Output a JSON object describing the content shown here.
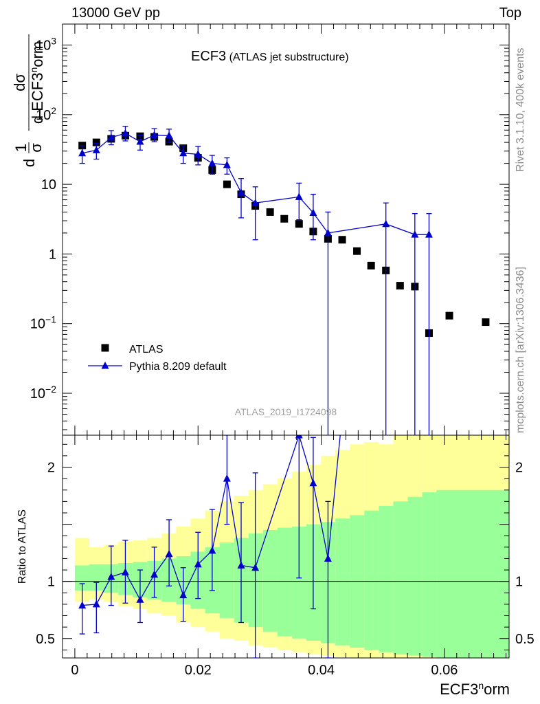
{
  "header": {
    "left": "13000 GeV pp",
    "right": "Top"
  },
  "side_texts": {
    "rivet": "Rivet 3.1.10,  400k events",
    "mcplots": "mcplots.cern.ch [arXiv:1306.3436]"
  },
  "colors": {
    "data": "#000000",
    "mc": "#0000cc",
    "band_inner": "#99ff99",
    "band_outer": "#ffff99"
  },
  "chart_data": [
    {
      "type": "scatter",
      "title": "ECF3",
      "subtitle": "(ATLAS jet substructure)",
      "analysis_label": "ATLAS_2019_I1724098",
      "ylabel": "1/σ dσ/d ECF3^norm",
      "y_scale": "log",
      "ylim": [
        0.0025,
        2000
      ],
      "xlim": [
        -0.002,
        0.0705
      ],
      "yticks": [
        {
          "value": 1000,
          "base": "10",
          "exp": "3"
        },
        {
          "value": 100,
          "base": "10",
          "exp": "2"
        },
        {
          "value": 10,
          "base": "10",
          "exp": ""
        },
        {
          "value": 1,
          "base": "1",
          "exp": ""
        },
        {
          "value": 0.1,
          "base": "10",
          "exp": "−1"
        },
        {
          "value": 0.01,
          "base": "10",
          "exp": "−2"
        }
      ],
      "legend": {
        "position": "bottom-left",
        "entries": [
          "ATLAS",
          "Pythia 8.209 default"
        ]
      },
      "series": [
        {
          "name": "ATLAS",
          "marker": "square",
          "x": [
            0.0012,
            0.0035,
            0.0059,
            0.0082,
            0.0106,
            0.0129,
            0.0153,
            0.0176,
            0.02,
            0.0223,
            0.0247,
            0.027,
            0.0293,
            0.0317,
            0.034,
            0.0364,
            0.0387,
            0.0411,
            0.0434,
            0.0458,
            0.0481,
            0.0505,
            0.0528,
            0.0552,
            0.0575,
            0.0608,
            0.0667
          ],
          "y": [
            36,
            40,
            45,
            50,
            49,
            48,
            41,
            33,
            24,
            16,
            10,
            7.2,
            4.9,
            4.0,
            3.2,
            2.7,
            2.1,
            1.65,
            1.6,
            1.1,
            0.68,
            0.58,
            0.35,
            0.34,
            0.073,
            0.13,
            0.105
          ]
        },
        {
          "name": "Pythia 8.209 default",
          "marker": "triangle",
          "x": [
            0.0012,
            0.0035,
            0.0059,
            0.0082,
            0.0106,
            0.0129,
            0.0153,
            0.0176,
            0.02,
            0.0223,
            0.0247,
            0.027,
            0.0293,
            0.0364,
            0.0387,
            0.0411,
            0.0505,
            0.0552,
            0.0575
          ],
          "y": [
            28,
            31,
            47,
            54,
            41,
            51,
            50,
            28,
            27,
            20,
            19,
            7.6,
            5.4,
            6.6,
            3.9,
            2.0,
            2.7,
            1.9,
            1.9
          ],
          "err_lo": [
            8,
            8,
            10,
            12,
            10,
            10,
            10,
            8,
            8,
            6,
            5,
            4.3,
            3.8,
            3.5,
            2.3,
            2.0,
            2.7,
            1.9,
            1.9
          ],
          "err_hi": [
            8,
            8,
            12,
            14,
            10,
            12,
            12,
            8,
            8,
            6,
            5,
            4.5,
            3.8,
            3.8,
            3.3,
            2.0,
            2.7,
            1.9,
            1.9
          ]
        }
      ]
    },
    {
      "type": "line",
      "ylabel": "Ratio to ATLAS",
      "xlabel": "ECF3^norm",
      "ylim": [
        0.33,
        2.28
      ],
      "xlim": [
        -0.002,
        0.0705
      ],
      "xticks": [
        0,
        0.02,
        0.04,
        0.06
      ],
      "xtick_labels": [
        "0",
        "0.02",
        "0.04",
        "0.06"
      ],
      "yticks": [
        0.5,
        1,
        2
      ],
      "ytick_labels": [
        "0.5",
        "1",
        "2"
      ],
      "bands": {
        "bin_edges": [
          0.0,
          0.00235,
          0.0047,
          0.00705,
          0.0094,
          0.01175,
          0.0141,
          0.01645,
          0.0188,
          0.02115,
          0.0235,
          0.02585,
          0.0282,
          0.03055,
          0.0329,
          0.03525,
          0.0376,
          0.03995,
          0.0423,
          0.04465,
          0.047,
          0.04935,
          0.0517,
          0.05405,
          0.0564,
          0.0587,
          0.0705
        ],
        "inner_lo": [
          0.92,
          0.92,
          0.9,
          0.88,
          0.86,
          0.84,
          0.82,
          0.8,
          0.76,
          0.72,
          0.68,
          0.64,
          0.6,
          0.56,
          0.52,
          0.5,
          0.48,
          0.46,
          0.44,
          0.42,
          0.4,
          0.38,
          0.36,
          0.35,
          0.34,
          0.33
        ],
        "inner_hi": [
          1.14,
          1.15,
          1.15,
          1.16,
          1.17,
          1.18,
          1.2,
          1.22,
          1.26,
          1.3,
          1.34,
          1.38,
          1.42,
          1.45,
          1.47,
          1.48,
          1.5,
          1.52,
          1.55,
          1.58,
          1.62,
          1.66,
          1.7,
          1.74,
          1.78,
          1.8
        ],
        "outer_lo": [
          0.82,
          0.84,
          0.82,
          0.78,
          0.76,
          0.72,
          0.7,
          0.64,
          0.6,
          0.56,
          0.5,
          0.48,
          0.44,
          0.42,
          0.4,
          0.38,
          0.36,
          0.35,
          0.34,
          0.33,
          0.33,
          0.33,
          0.33,
          0.33,
          0.33,
          0.33
        ],
        "outer_hi": [
          1.38,
          1.3,
          1.32,
          1.35,
          1.36,
          1.38,
          1.42,
          1.48,
          1.55,
          1.62,
          1.7,
          1.75,
          1.8,
          1.85,
          1.9,
          1.96,
          2.02,
          2.1,
          2.15,
          2.2,
          2.22,
          2.2,
          2.28,
          2.28,
          2.28,
          2.28
        ]
      },
      "series": [
        {
          "name": "Pythia 8.209 default",
          "x": [
            0.0012,
            0.0035,
            0.0059,
            0.0082,
            0.0106,
            0.0129,
            0.0153,
            0.0176,
            0.02,
            0.0223,
            0.0247,
            0.027,
            0.0293,
            0.0364,
            0.0387,
            0.0411,
            0.0434
          ],
          "y": [
            0.79,
            0.8,
            1.04,
            1.08,
            0.84,
            1.06,
            1.24,
            0.88,
            1.15,
            1.27,
            1.9,
            1.14,
            1.12,
            2.28,
            1.86,
            1.2,
            2.45
          ],
          "err_lo": [
            0.25,
            0.25,
            0.25,
            0.27,
            0.2,
            0.2,
            0.28,
            0.23,
            0.3,
            0.35,
            0.4,
            0.5,
            0.8,
            1.25,
            1.1,
            1.0,
            0
          ],
          "err_hi": [
            0.19,
            0.19,
            0.27,
            0.28,
            0.26,
            0.24,
            0.3,
            0.24,
            0.28,
            0.36,
            0.45,
            0.55,
            0.83,
            0.3,
            0.4,
            0.5,
            0
          ]
        }
      ]
    }
  ]
}
